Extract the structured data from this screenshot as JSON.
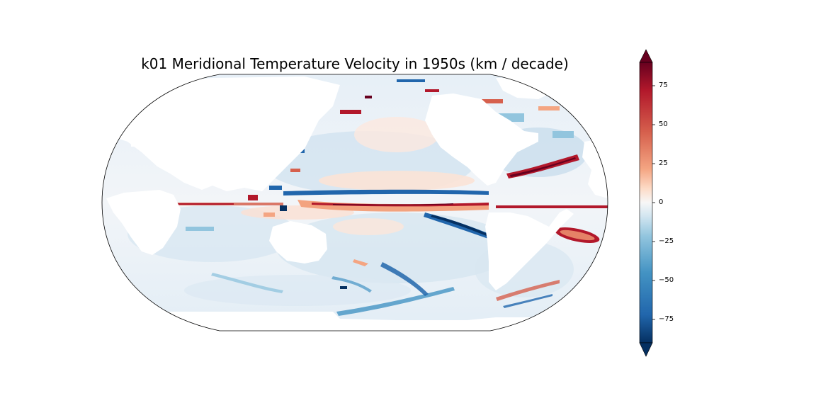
{
  "title": "k01 Meridional Temperature Velocity in 1950s (km / decade)",
  "colorbar": {
    "colormap": "RdBu_r",
    "vmin": -90,
    "vmax": 90,
    "extend": "both",
    "ticks": [
      {
        "value": 75,
        "label": "75"
      },
      {
        "value": 50,
        "label": "50"
      },
      {
        "value": 25,
        "label": "25"
      },
      {
        "value": 0,
        "label": "0"
      },
      {
        "value": -25,
        "label": "−25"
      },
      {
        "value": -50,
        "label": "−50"
      },
      {
        "value": -75,
        "label": "−75"
      }
    ],
    "colors": {
      "max": "#67001f",
      "high": "#b2182b",
      "mid_high": "#f4a582",
      "center": "#f7f7f7",
      "mid_low": "#92c5de",
      "low": "#2166ac",
      "min": "#053061"
    }
  },
  "map": {
    "projection": "Robinson",
    "land_color": "#ffffff",
    "ocean_base": "#eaf2f8"
  }
}
